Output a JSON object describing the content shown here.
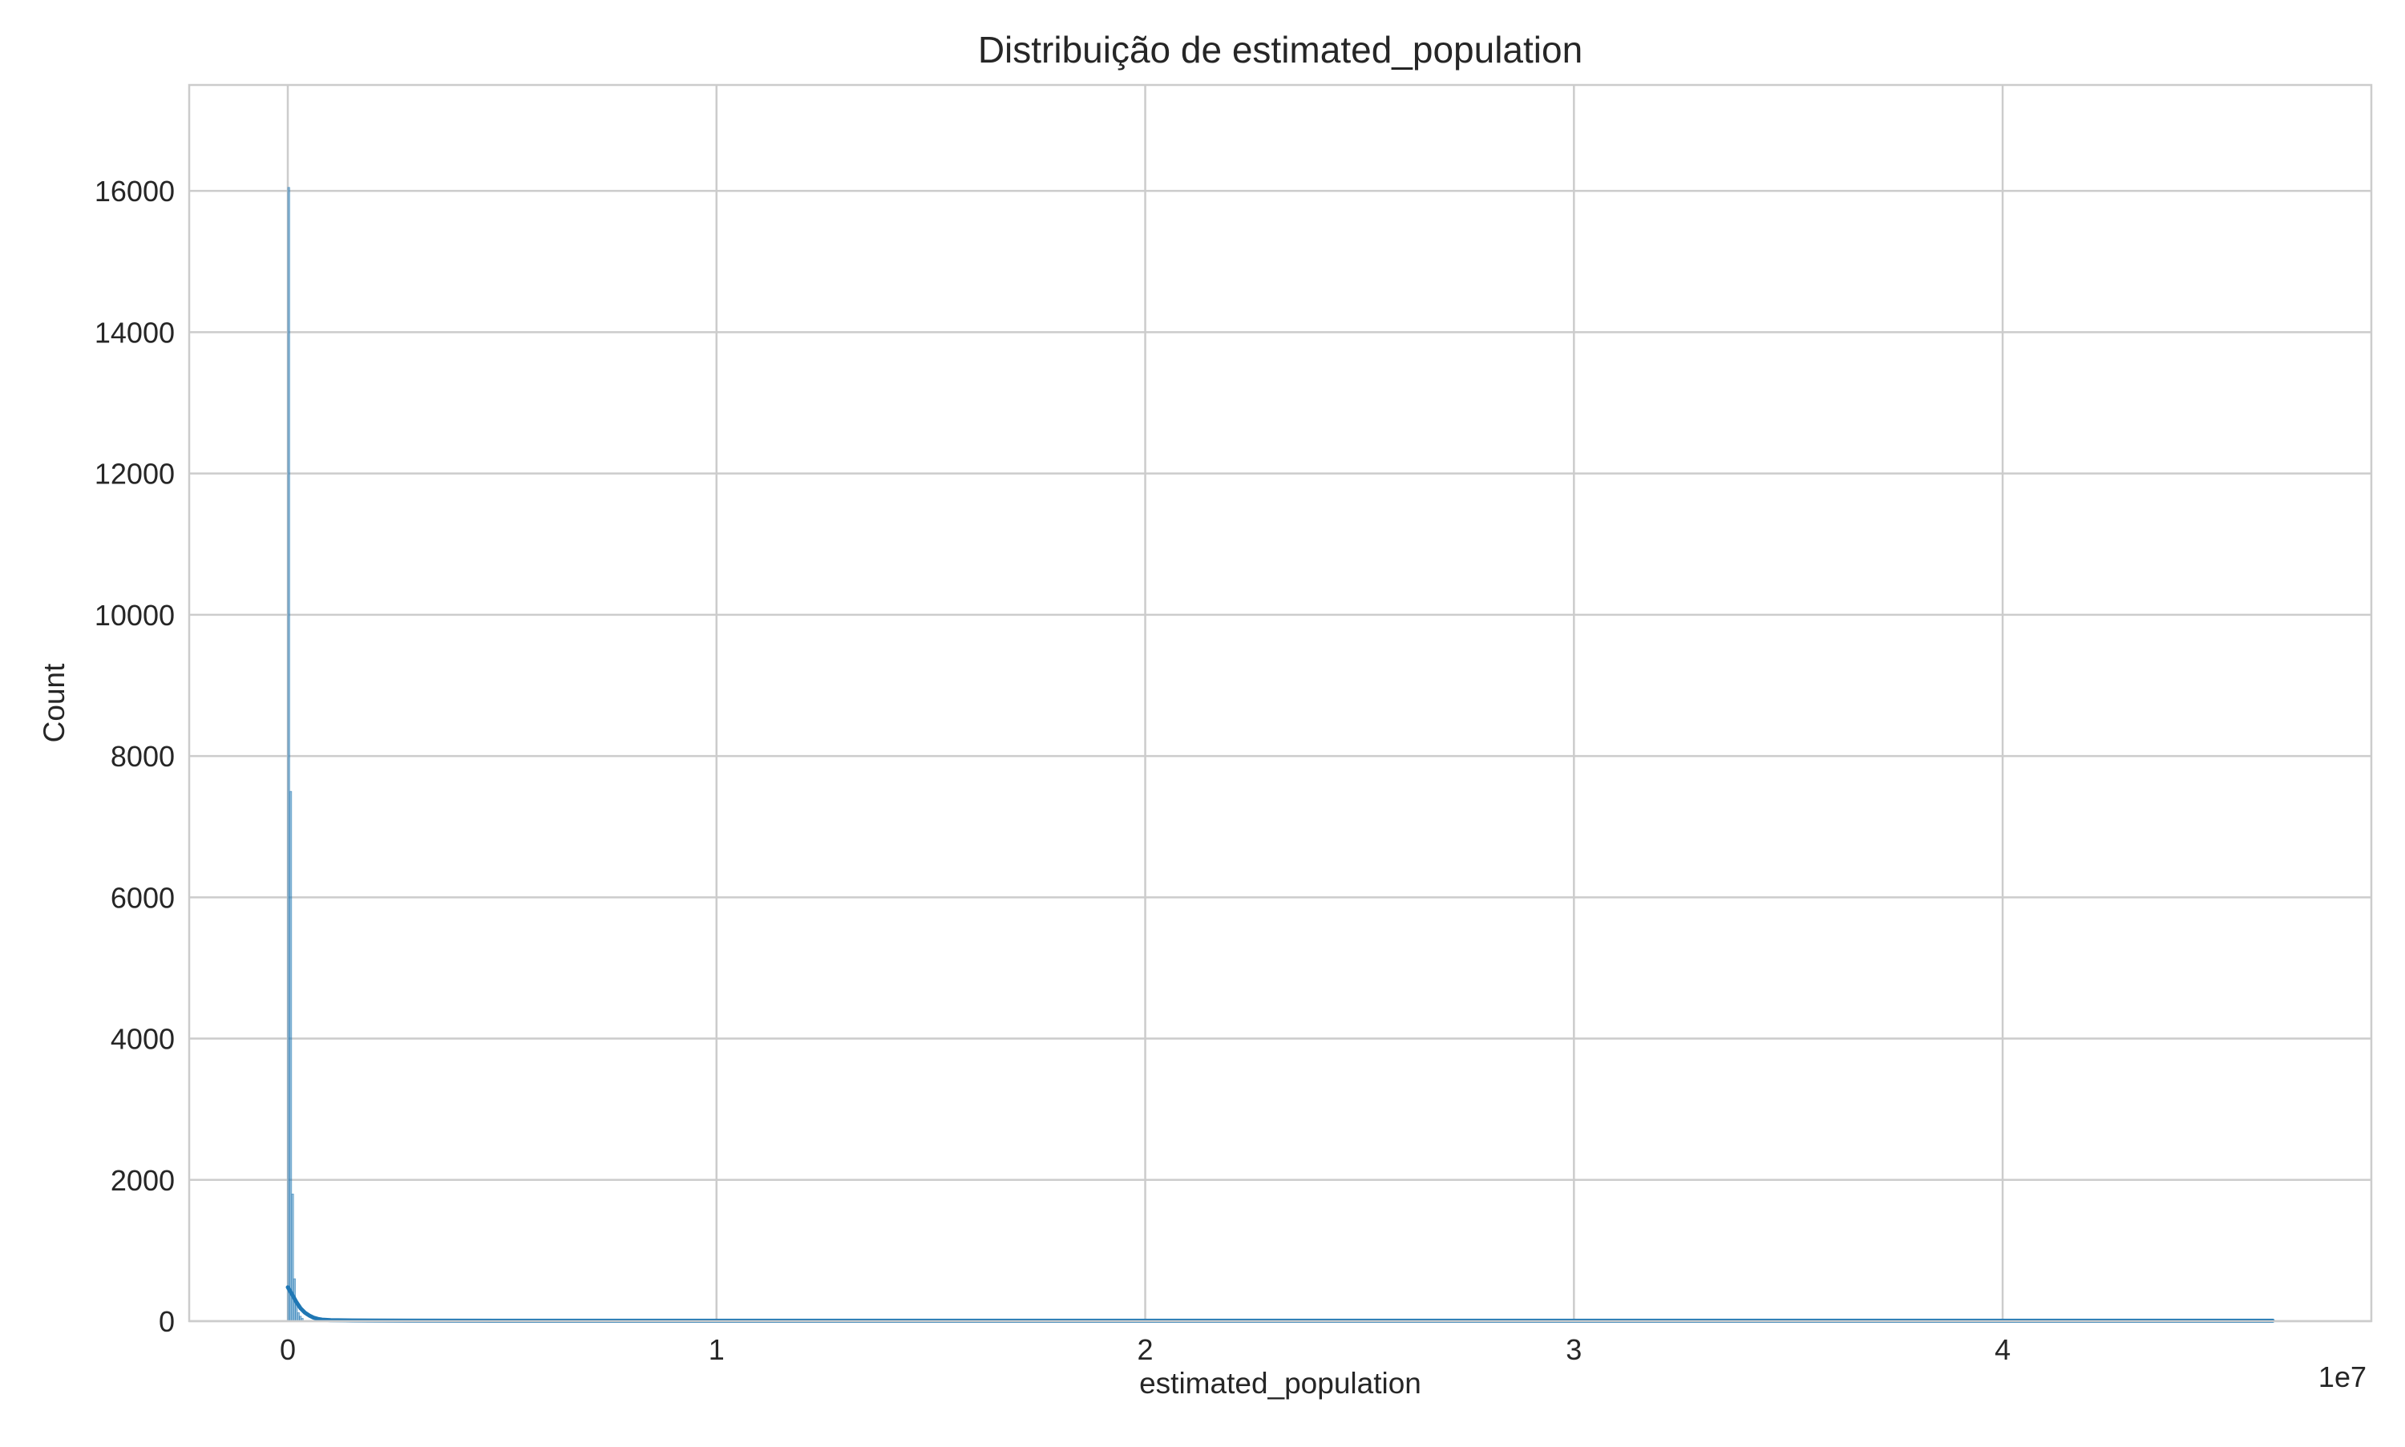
{
  "chart_data": {
    "type": "bar",
    "title": "Distribuição de estimated_population",
    "xlabel": "estimated_population",
    "ylabel": "Count",
    "x_offset_text": "1e7",
    "xlim": [
      -2300000,
      48600000
    ],
    "ylim": [
      0,
      17500
    ],
    "x_ticks": [
      0,
      10000000,
      20000000,
      30000000,
      40000000
    ],
    "x_tick_labels": [
      "0",
      "1",
      "2",
      "3",
      "4"
    ],
    "y_ticks": [
      0,
      2000,
      4000,
      6000,
      8000,
      10000,
      12000,
      14000,
      16000
    ],
    "y_tick_labels": [
      "0",
      "2000",
      "4000",
      "6000",
      "8000",
      "10000",
      "12000",
      "14000",
      "16000"
    ],
    "grid": true,
    "colors": {
      "bar": "#1f77b4",
      "kde": "#1f77b4",
      "grid": "#cccccc",
      "spine": "#cccccc",
      "text": "#262626"
    },
    "histogram": {
      "bin_width": 45000,
      "bins": [
        {
          "x0": 0,
          "x1": 45000,
          "count": 16050
        },
        {
          "x0": 45000,
          "x1": 90000,
          "count": 7500
        },
        {
          "x0": 90000,
          "x1": 135000,
          "count": 1800
        },
        {
          "x0": 135000,
          "x1": 180000,
          "count": 600
        },
        {
          "x0": 180000,
          "x1": 225000,
          "count": 250
        },
        {
          "x0": 225000,
          "x1": 270000,
          "count": 120
        },
        {
          "x0": 270000,
          "x1": 315000,
          "count": 70
        },
        {
          "x0": 315000,
          "x1": 360000,
          "count": 40
        }
      ]
    },
    "kde": {
      "x": [
        0,
        100000,
        200000,
        300000,
        400000,
        500000,
        600000,
        700000,
        800000,
        1000000,
        1500000,
        2000000,
        5000000,
        10000000,
        20000000,
        30000000,
        40000000,
        46300000
      ],
      "y": [
        480,
        380,
        270,
        180,
        120,
        80,
        50,
        32,
        22,
        14,
        10,
        8,
        6,
        5,
        5,
        5,
        5,
        5
      ]
    }
  }
}
